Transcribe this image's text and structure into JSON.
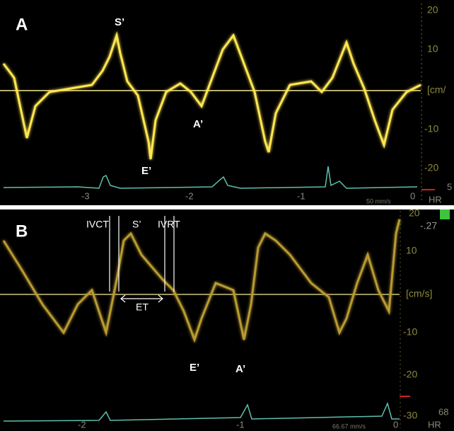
{
  "panel_a": {
    "label": "A",
    "annotations": {
      "s_prime": "S’",
      "a_prime": "A’",
      "e_prime": "E’"
    },
    "scale_labels": [
      "20",
      "10",
      "[cm/",
      "-10",
      "-20"
    ],
    "time_labels": [
      "-3",
      "-2",
      "-1",
      "0"
    ],
    "sweep_speed": "50 mm/s",
    "hr": "HR",
    "edge": "5"
  },
  "panel_b": {
    "label": "B",
    "annotations": {
      "ivct": "IVCT",
      "s_prime": "S’",
      "ivrt": "IVRT",
      "et": "ET",
      "e_prime": "E’",
      "a_prime": "A’"
    },
    "scale_labels": [
      "20",
      "-.27",
      "10",
      "[cm/s]",
      "-10",
      "-20",
      "-30"
    ],
    "time_labels": [
      "-2",
      "-1",
      "0"
    ],
    "sweep_speed": "66.67 mm/s",
    "heart_rate": "68",
    "hr": "HR"
  }
}
